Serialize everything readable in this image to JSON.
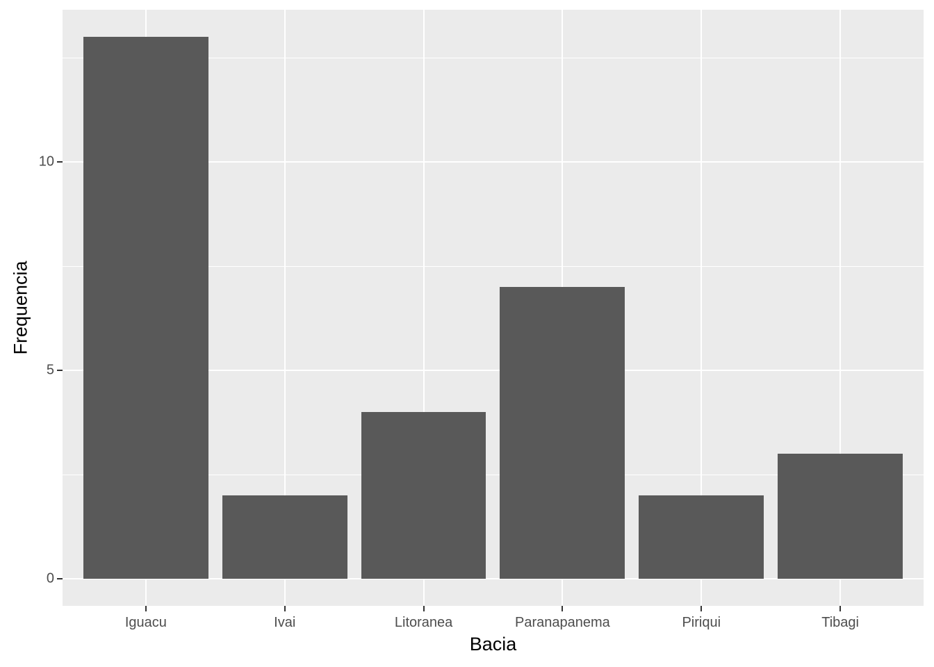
{
  "chart_data": {
    "type": "bar",
    "title": "",
    "categories": [
      "Iguacu",
      "Ivai",
      "Litoranea",
      "Paranapanema",
      "Piriqui",
      "Tibagi"
    ],
    "values": [
      13,
      2,
      4,
      7,
      2,
      3
    ],
    "xlabel": "Bacia",
    "ylabel": "Frequencia",
    "ylim": [
      -0.65,
      13.65
    ],
    "y_major_ticks": [
      0,
      5,
      10
    ],
    "y_minor_ticks": [
      2.5,
      7.5,
      12.5
    ],
    "grid": "major+minor horizontal, major vertical at category centers",
    "legend_position": "none"
  },
  "style": {
    "bar_fill": "#595959",
    "panel_bg": "#EBEBEB",
    "grid_color": "#FFFFFF",
    "tick_mark_color": "#333333",
    "tick_label_color": "#4D4D4D",
    "axis_title_color": "#000000"
  }
}
